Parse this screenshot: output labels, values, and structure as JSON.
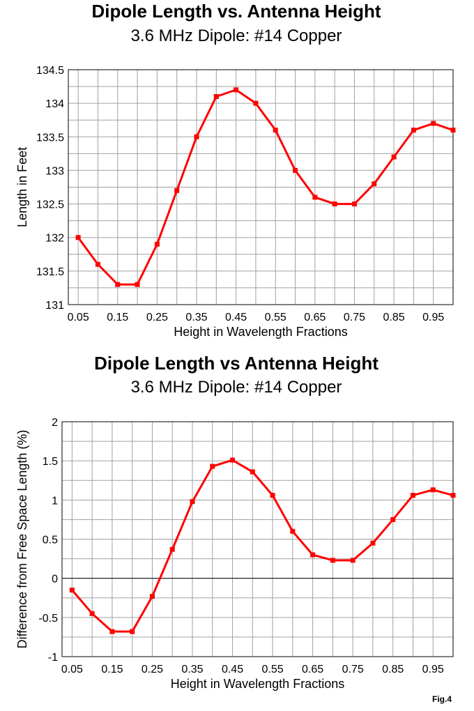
{
  "figure_label": "Fig.4",
  "chart_data": [
    {
      "type": "line",
      "title": "Dipole Length vs. Antenna Height",
      "subtitle": "3.6 MHz Dipole:  #14 Copper",
      "xlabel": "Height in Wavelength Fractions",
      "ylabel": "Length in Feet",
      "x": [
        0.05,
        0.1,
        0.15,
        0.2,
        0.25,
        0.3,
        0.35,
        0.4,
        0.45,
        0.5,
        0.55,
        0.6,
        0.65,
        0.7,
        0.75,
        0.8,
        0.85,
        0.9,
        0.95,
        1.0
      ],
      "x_tick_labels": [
        "0.05",
        "0.15",
        "0.25",
        "0.35",
        "0.45",
        "0.55",
        "0.65",
        "0.75",
        "0.85",
        "0.95"
      ],
      "y_tick_labels": [
        "134.5",
        "134",
        "133.5",
        "133",
        "132.5",
        "132",
        "131.5",
        "131"
      ],
      "ylim": [
        131,
        134.5
      ],
      "series": [
        {
          "values": [
            132.0,
            131.6,
            131.3,
            131.3,
            131.9,
            132.7,
            133.5,
            134.1,
            134.2,
            134.0,
            133.6,
            133.0,
            132.6,
            132.5,
            132.5,
            132.8,
            133.2,
            133.6,
            133.7,
            133.6
          ]
        }
      ],
      "color": "#ff0000",
      "grid": true,
      "zero_line": false
    },
    {
      "type": "line",
      "title": "Dipole Length vs Antenna Height",
      "subtitle": "3.6 MHz Dipole: #14 Copper",
      "xlabel": "Height in Wavelength Fractions",
      "ylabel": "Difference from Free Space Length (%)",
      "x": [
        0.05,
        0.1,
        0.15,
        0.2,
        0.25,
        0.3,
        0.35,
        0.4,
        0.45,
        0.5,
        0.55,
        0.6,
        0.65,
        0.7,
        0.75,
        0.8,
        0.85,
        0.9,
        0.95,
        1.0
      ],
      "x_tick_labels": [
        "0.05",
        "0.15",
        "0.25",
        "0.35",
        "0.45",
        "0.55",
        "0.65",
        "0.75",
        "0.85",
        "0.95"
      ],
      "y_tick_labels": [
        "2",
        "1.5",
        "1",
        "0.5",
        "0",
        "-0.5",
        "-1"
      ],
      "ylim": [
        -1,
        2
      ],
      "series": [
        {
          "values": [
            -0.15,
            -0.45,
            -0.68,
            -0.68,
            -0.23,
            0.37,
            0.98,
            1.43,
            1.51,
            1.36,
            1.06,
            0.6,
            0.3,
            0.23,
            0.23,
            0.45,
            0.75,
            1.06,
            1.13,
            1.06
          ]
        }
      ],
      "color": "#ff0000",
      "grid": true,
      "zero_line": true
    }
  ]
}
